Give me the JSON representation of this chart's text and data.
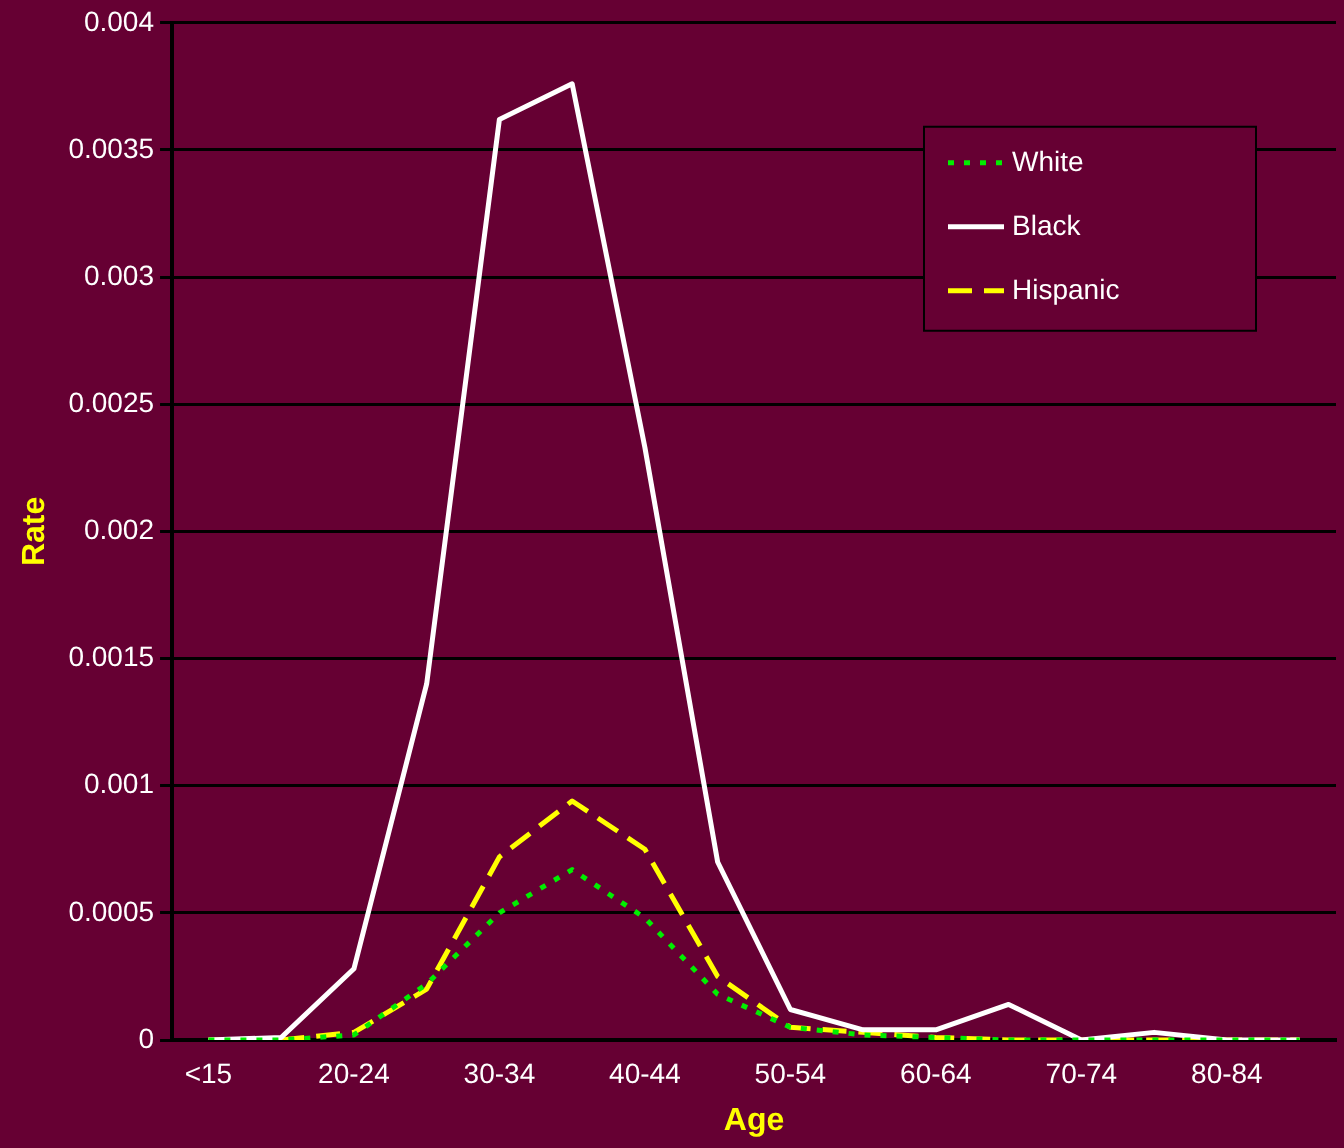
{
  "chart_data": {
    "type": "line",
    "xlabel": "Age",
    "ylabel": "Rate",
    "categories": [
      "<15",
      null,
      "20-24",
      null,
      "30-34",
      null,
      "40-44",
      null,
      "50-54",
      null,
      "60-64",
      null,
      "70-74",
      null,
      "80-84",
      null
    ],
    "series": [
      {
        "name": "White",
        "color": "#00ee00",
        "line_style": "dotted",
        "values": [
          0,
          0,
          2e-05,
          0.00022,
          0.0005,
          0.00067,
          0.00048,
          0.00018,
          5e-05,
          2e-05,
          1e-05,
          0,
          0,
          0,
          0,
          0
        ]
      },
      {
        "name": "Black",
        "color": "#ffffff",
        "line_style": "solid",
        "values": [
          0,
          1e-05,
          0.00028,
          0.0014,
          0.00362,
          0.00376,
          0.00233,
          0.0007,
          0.00012,
          4e-05,
          4e-05,
          0.00014,
          0,
          3e-05,
          0,
          0
        ]
      },
      {
        "name": "Hispanic",
        "color": "#ffff00",
        "line_style": "dashed",
        "values": [
          0,
          0,
          3e-05,
          0.0002,
          0.00072,
          0.00094,
          0.00075,
          0.00025,
          5e-05,
          3e-05,
          1e-05,
          0,
          0,
          0,
          0,
          0
        ]
      }
    ],
    "ylim": [
      0,
      0.004
    ],
    "yticks": [
      0,
      0.0005,
      0.001,
      0.0015,
      0.002,
      0.0025,
      0.003,
      0.0035,
      0.004
    ],
    "grid": "y",
    "legend": "top right",
    "marker": "none"
  }
}
